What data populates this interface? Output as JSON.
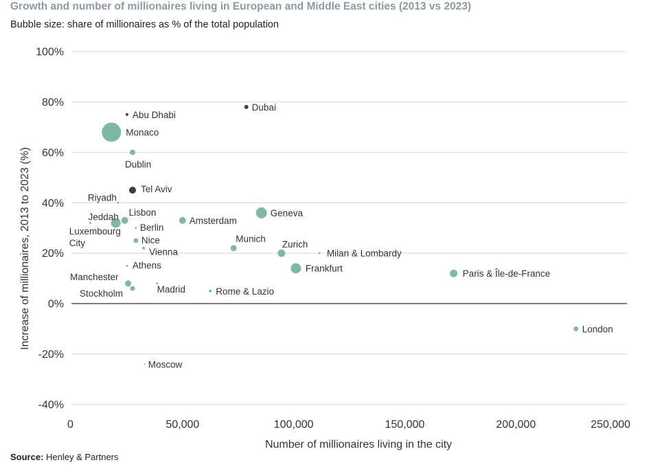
{
  "title": "Growth and number of millionaires living in European and Middle East cities (2013 vs 2023)",
  "subtitle": "Bubble size: share of millionaires as % of the total population",
  "source": {
    "prefix": "Source:",
    "text": " Henley & Partners"
  },
  "colors": {
    "europe": "#7fb8a4",
    "middle_east": "#3a3f3f",
    "grid": "#d9d9d9",
    "zero_line": "#333333"
  },
  "chart_data": {
    "type": "scatter",
    "title": "Growth and number of millionaires living in European and Middle East cities (2013 vs 2023)",
    "subtitle": "Bubble size: share of millionaires as % of the total population",
    "xlabel": "Number of millionaires living in the city",
    "ylabel": "Increase of millionaires, 2013 to 2023 (%)",
    "xlim": [
      0,
      250000
    ],
    "ylim": [
      -40,
      100
    ],
    "x_ticks": [
      0,
      50000,
      100000,
      150000,
      200000,
      250000
    ],
    "x_tick_labels": [
      "0",
      "50,000",
      "100,000",
      "150,000",
      "200,000",
      "250,000"
    ],
    "y_ticks": [
      -40,
      -20,
      0,
      20,
      40,
      60,
      80,
      100
    ],
    "y_tick_labels": [
      "-40%",
      "-20%",
      "0%",
      "20%",
      "40%",
      "60%",
      "80%",
      "100%"
    ],
    "grid": true,
    "points": [
      {
        "label": "Abu Dhabi",
        "x": 25000,
        "y": 75,
        "size": 2,
        "group": "middle_east"
      },
      {
        "label": "Dubai",
        "x": 78700,
        "y": 78,
        "size": 3,
        "group": "middle_east"
      },
      {
        "label": "Monaco",
        "x": 18000,
        "y": 68,
        "size": 14,
        "group": "europe"
      },
      {
        "label": "Dublin",
        "x": 27500,
        "y": 60,
        "size": 4,
        "group": "europe"
      },
      {
        "label": "Tel Aviv",
        "x": 27500,
        "y": 45,
        "size": 5,
        "group": "middle_east"
      },
      {
        "label": "Riyadh",
        "x": 21000,
        "y": 40,
        "size": 0.5,
        "group": "middle_east"
      },
      {
        "label": "Jeddah",
        "x": 8500,
        "y": 32,
        "size": 0.5,
        "group": "middle_east"
      },
      {
        "label": "Luxembourg City",
        "x": 20000,
        "y": 32,
        "size": 7,
        "group": "europe"
      },
      {
        "label": "Lisbon",
        "x": 24000,
        "y": 33,
        "size": 5,
        "group": "europe"
      },
      {
        "label": "Berlin",
        "x": 29000,
        "y": 30,
        "size": 1.5,
        "group": "europe"
      },
      {
        "label": "Nice",
        "x": 29000,
        "y": 25,
        "size": 3.5,
        "group": "europe"
      },
      {
        "label": "Vienna",
        "x": 32500,
        "y": 22,
        "size": 2,
        "group": "europe"
      },
      {
        "label": "Amsterdam",
        "x": 50000,
        "y": 33,
        "size": 5,
        "group": "europe"
      },
      {
        "label": "Geneva",
        "x": 85500,
        "y": 36,
        "size": 8,
        "group": "europe"
      },
      {
        "label": "Munich",
        "x": 73000,
        "y": 22,
        "size": 4.5,
        "group": "europe"
      },
      {
        "label": "Zurich",
        "x": 94500,
        "y": 20,
        "size": 5.5,
        "group": "europe"
      },
      {
        "label": "Milan & Lombardy",
        "x": 111500,
        "y": 20,
        "size": 1.5,
        "group": "europe"
      },
      {
        "label": "Frankfurt",
        "x": 101000,
        "y": 14,
        "size": 7.5,
        "group": "europe"
      },
      {
        "label": "Paris & Île-de-France",
        "x": 172000,
        "y": 12,
        "size": 5.5,
        "group": "europe"
      },
      {
        "label": "Athens",
        "x": 25000,
        "y": 15,
        "size": 1.5,
        "group": "europe"
      },
      {
        "label": "Manchester",
        "x": 25500,
        "y": 8,
        "size": 4.5,
        "group": "europe"
      },
      {
        "label": "Stockholm",
        "x": 27500,
        "y": 6,
        "size": 3.5,
        "group": "europe"
      },
      {
        "label": "Madrid",
        "x": 38500,
        "y": 8,
        "size": 1.5,
        "group": "europe"
      },
      {
        "label": "Rome & Lazio",
        "x": 62500,
        "y": 5,
        "size": 2,
        "group": "europe"
      },
      {
        "label": "London",
        "x": 227000,
        "y": -10,
        "size": 3.5,
        "group": "europe"
      },
      {
        "label": "Moscow",
        "x": 33000,
        "y": -24,
        "size": 0.8,
        "group": "europe"
      }
    ]
  }
}
